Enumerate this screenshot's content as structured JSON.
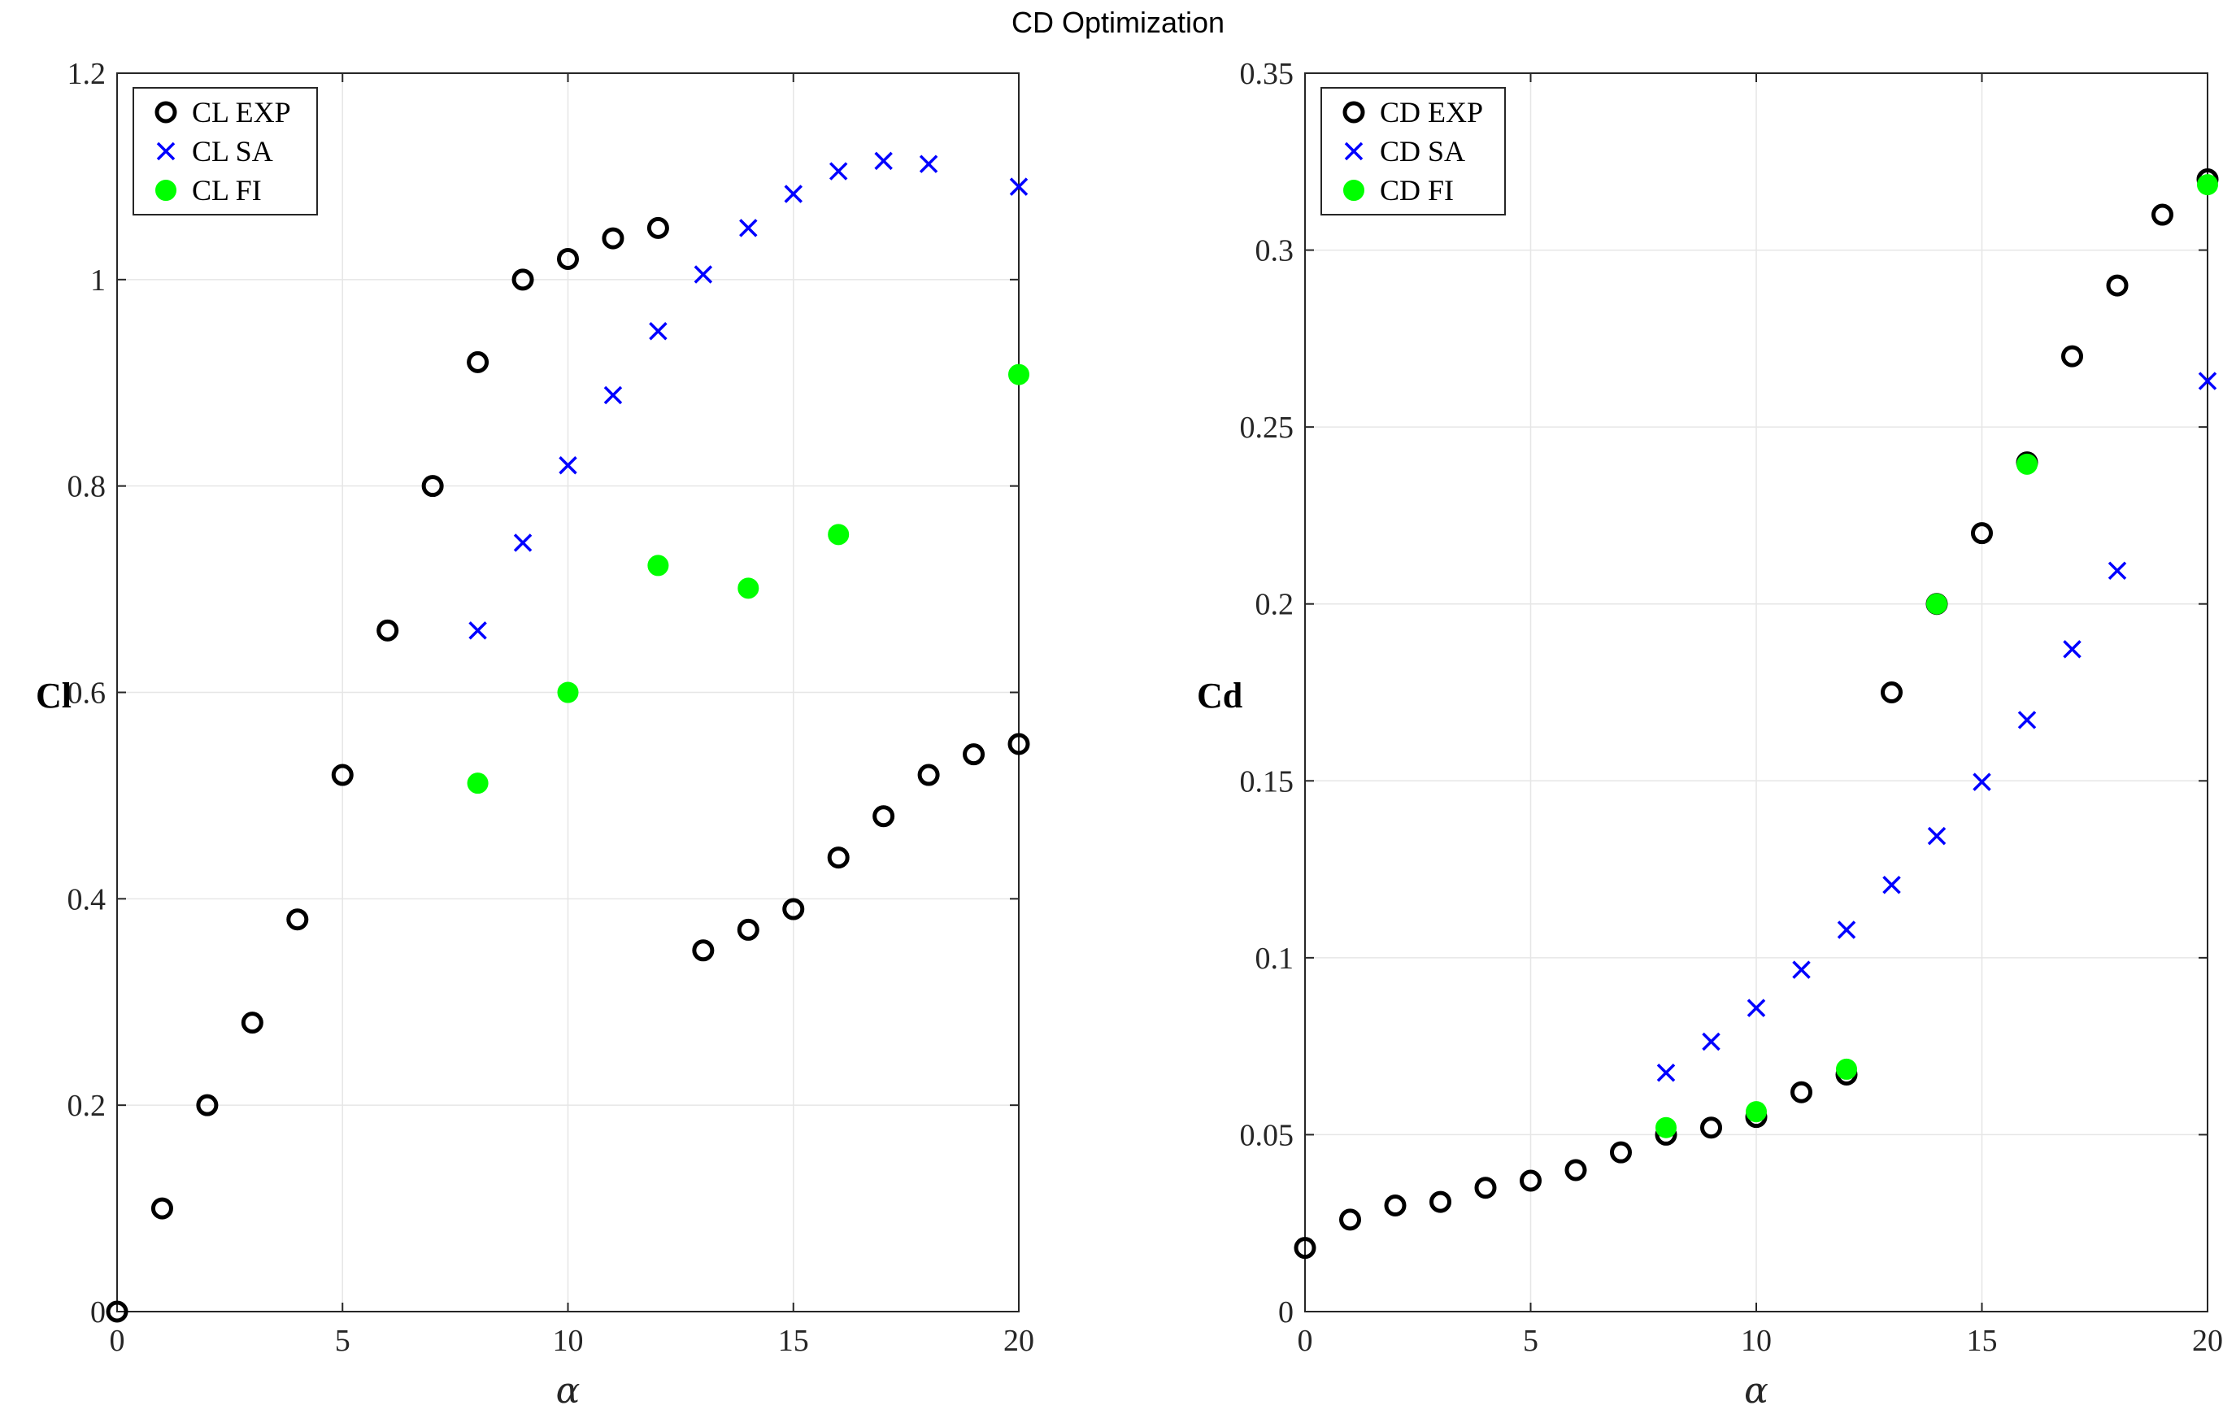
{
  "suptitle": "CD Optimization",
  "colors": {
    "exp": "#000000",
    "sa": "#0000ff",
    "fi": "#00ff00",
    "grid": "#e6e6e6",
    "axis": "#262626"
  },
  "chart_data": [
    {
      "type": "scatter",
      "id": "left",
      "title": "",
      "xlabel": "α",
      "ylabel": "Cl",
      "xlim": [
        0,
        20
      ],
      "ylim": [
        0,
        1.2
      ],
      "xticks": [
        0,
        5,
        10,
        15,
        20
      ],
      "yticks": [
        0,
        0.2,
        0.4,
        0.6,
        0.8,
        1,
        1.2
      ],
      "xtick_labels": [
        "0",
        "5",
        "10",
        "15",
        "20"
      ],
      "ytick_labels": [
        "0",
        "0.2",
        "0.4",
        "0.6",
        "0.8",
        "1",
        "1.2"
      ],
      "grid": true,
      "legend_position": "top-left",
      "series": [
        {
          "name": "CL EXP",
          "marker": "circle",
          "color": "#000000",
          "points": [
            [
              0,
              0
            ],
            [
              1,
              0.1
            ],
            [
              2,
              0.2
            ],
            [
              3,
              0.28
            ],
            [
              4,
              0.38
            ],
            [
              5,
              0.52
            ],
            [
              6,
              0.66
            ],
            [
              7,
              0.8
            ],
            [
              8,
              0.92
            ],
            [
              9,
              1.0
            ],
            [
              10,
              1.02
            ],
            [
              11,
              1.04
            ],
            [
              12,
              1.05
            ],
            [
              13,
              0.35
            ],
            [
              14,
              0.37
            ],
            [
              15,
              0.39
            ],
            [
              16,
              0.44
            ],
            [
              17,
              0.48
            ],
            [
              18,
              0.52
            ],
            [
              19,
              0.54
            ],
            [
              20,
              0.55
            ]
          ]
        },
        {
          "name": "CL SA",
          "marker": "x",
          "color": "#0000ff",
          "points": [
            [
              8,
              0.66
            ],
            [
              9,
              0.745
            ],
            [
              10,
              0.82
            ],
            [
              11,
              0.888
            ],
            [
              12,
              0.95
            ],
            [
              13,
              1.005
            ],
            [
              14,
              1.05
            ],
            [
              15,
              1.083
            ],
            [
              16,
              1.105
            ],
            [
              17,
              1.115
            ],
            [
              18,
              1.112
            ],
            [
              20,
              1.09
            ]
          ]
        },
        {
          "name": "CL FI",
          "marker": "filled-circle",
          "color": "#00ff00",
          "points": [
            [
              8,
              0.512
            ],
            [
              10,
              0.6
            ],
            [
              12,
              0.723
            ],
            [
              14,
              0.701
            ],
            [
              16,
              0.753
            ],
            [
              20,
              0.908
            ]
          ]
        }
      ]
    },
    {
      "type": "scatter",
      "id": "right",
      "title": "",
      "xlabel": "α",
      "ylabel": "Cd",
      "xlim": [
        0,
        20
      ],
      "ylim": [
        0,
        0.35
      ],
      "xticks": [
        0,
        5,
        10,
        15,
        20
      ],
      "yticks": [
        0,
        0.05,
        0.1,
        0.15,
        0.2,
        0.25,
        0.3,
        0.35
      ],
      "xtick_labels": [
        "0",
        "5",
        "10",
        "15",
        "20"
      ],
      "ytick_labels": [
        "0",
        "0.05",
        "0.1",
        "0.15",
        "0.2",
        "0.25",
        "0.3",
        "0.35"
      ],
      "grid": true,
      "legend_position": "top-left",
      "series": [
        {
          "name": "CD EXP",
          "marker": "circle",
          "color": "#000000",
          "points": [
            [
              0,
              0.018
            ],
            [
              1,
              0.026
            ],
            [
              2,
              0.03
            ],
            [
              3,
              0.031
            ],
            [
              4,
              0.035
            ],
            [
              5,
              0.037
            ],
            [
              6,
              0.04
            ],
            [
              7,
              0.045
            ],
            [
              8,
              0.05
            ],
            [
              9,
              0.052
            ],
            [
              10,
              0.055
            ],
            [
              11,
              0.062
            ],
            [
              12,
              0.067
            ],
            [
              13,
              0.175
            ],
            [
              14,
              0.2
            ],
            [
              15,
              0.22
            ],
            [
              16,
              0.24
            ],
            [
              17,
              0.27
            ],
            [
              18,
              0.29
            ],
            [
              19,
              0.31
            ],
            [
              20,
              0.32
            ]
          ]
        },
        {
          "name": "CD SA",
          "marker": "x",
          "color": "#0000ff",
          "points": [
            [
              8,
              0.0675
            ],
            [
              9,
              0.0763
            ],
            [
              10,
              0.0858
            ],
            [
              11,
              0.0966
            ],
            [
              12,
              0.1079
            ],
            [
              13,
              0.1206
            ],
            [
              14,
              0.1344
            ],
            [
              15,
              0.1497
            ],
            [
              16,
              0.1672
            ],
            [
              17,
              0.1872
            ],
            [
              18,
              0.2094
            ],
            [
              20,
              0.263
            ]
          ]
        },
        {
          "name": "CD FI",
          "marker": "filled-circle",
          "color": "#00ff00",
          "points": [
            [
              8,
              0.052
            ],
            [
              10,
              0.0565
            ],
            [
              12,
              0.0685
            ],
            [
              14,
              0.2
            ],
            [
              16,
              0.2395
            ],
            [
              20,
              0.3185
            ]
          ]
        }
      ]
    }
  ]
}
